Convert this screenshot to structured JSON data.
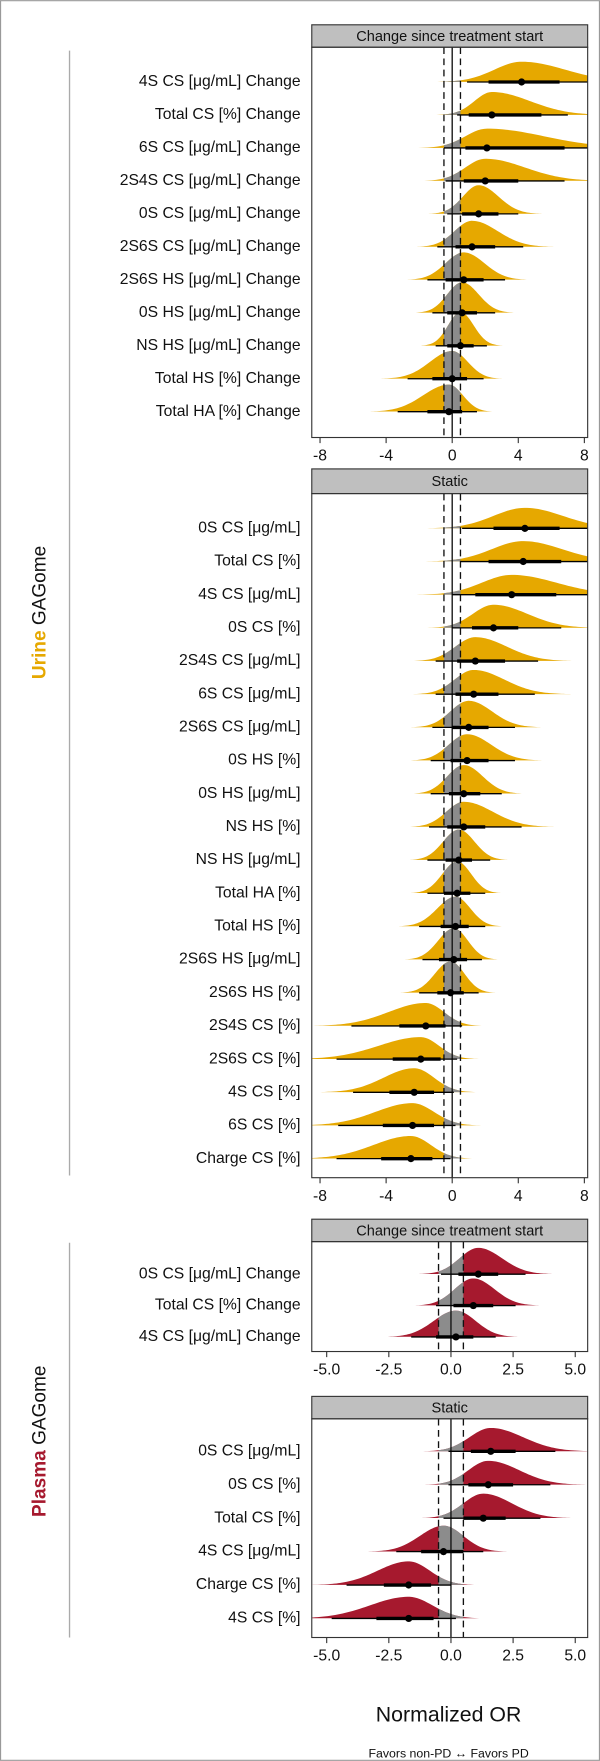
{
  "chart_data": [
    {
      "type": "forest",
      "title": "Change since treatment start",
      "color": "#e6a800",
      "rope_color": "#8c8c8c",
      "categories": [
        "4S CS [μg/mL] Change",
        "Total CS [%] Change",
        "6S CS [μg/mL] Change",
        "2S4S CS [μg/mL] Change",
        "0S CS [μg/mL] Change",
        "2S6S CS [μg/mL] Change",
        "2S6S HS [μg/mL] Change",
        "0S HS [μg/mL] Change",
        "NS HS [μg/mL] Change",
        "Total HS [%] Change",
        "Total HA [%] Change"
      ],
      "estimates": [
        4.2,
        2.4,
        2.1,
        2.0,
        1.6,
        1.2,
        0.7,
        0.6,
        0.5,
        0.0,
        -0.2
      ],
      "inner": [
        [
          2.2,
          6.5
        ],
        [
          1.0,
          5.4
        ],
        [
          0.8,
          6.8
        ],
        [
          0.7,
          4.0
        ],
        [
          0.6,
          2.8
        ],
        [
          0.2,
          2.6
        ],
        [
          -0.4,
          1.9
        ],
        [
          -0.3,
          1.5
        ],
        [
          -0.3,
          1.3
        ],
        [
          -1.2,
          0.9
        ],
        [
          -1.5,
          0.6
        ]
      ],
      "outer": [
        [
          0.9,
          9.5
        ],
        [
          0.3,
          7.0
        ],
        [
          -0.5,
          9.0
        ],
        [
          -0.4,
          6.8
        ],
        [
          -0.3,
          4.0
        ],
        [
          -0.9,
          4.3
        ],
        [
          -1.5,
          3.2
        ],
        [
          -1.2,
          2.6
        ],
        [
          -1.0,
          2.1
        ],
        [
          -2.7,
          1.9
        ],
        [
          -3.3,
          1.5
        ]
      ],
      "reference": 0,
      "rope": [
        -0.5,
        0.5
      ],
      "xlim": [
        -8.5,
        8.2
      ],
      "xticks": [
        -8,
        -4,
        0,
        4,
        8
      ]
    },
    {
      "type": "forest",
      "title": "Static",
      "color": "#e6a800",
      "rope_color": "#8c8c8c",
      "categories": [
        "0S CS [μg/mL]",
        "Total CS [%]",
        "4S CS [μg/mL]",
        "0S CS [%]",
        "2S4S CS [μg/mL]",
        "6S CS [μg/mL]",
        "2S6S CS [μg/mL]",
        "0S HS [%]",
        "0S HS [μg/mL]",
        "NS HS [%]",
        "NS HS [μg/mL]",
        "Total HA [%]",
        "Total HS [%]",
        "2S6S HS [μg/mL]",
        "2S6S HS [%]",
        "2S4S CS [%]",
        "2S6S CS [%]",
        "4S CS [%]",
        "6S CS [%]",
        "Charge CS [%]"
      ],
      "estimates": [
        4.4,
        4.3,
        3.6,
        2.5,
        1.4,
        1.3,
        1.0,
        0.9,
        0.7,
        0.7,
        0.4,
        0.3,
        0.2,
        0.1,
        -0.1,
        -1.6,
        -1.9,
        -2.3,
        -2.4,
        -2.5
      ],
      "inner": [
        [
          2.5,
          6.5
        ],
        [
          2.2,
          6.6
        ],
        [
          1.4,
          6.3
        ],
        [
          1.2,
          4.0
        ],
        [
          0.3,
          3.2
        ],
        [
          0.2,
          2.8
        ],
        [
          0.0,
          2.2
        ],
        [
          -0.1,
          2.2
        ],
        [
          -0.2,
          1.7
        ],
        [
          -0.3,
          2.0
        ],
        [
          -0.4,
          1.2
        ],
        [
          -0.5,
          1.1
        ],
        [
          -0.7,
          1.0
        ],
        [
          -0.8,
          0.9
        ],
        [
          -0.9,
          0.7
        ],
        [
          -3.2,
          -0.4
        ],
        [
          -3.6,
          -0.7
        ],
        [
          -3.8,
          -1.1
        ],
        [
          -4.2,
          -1.1
        ],
        [
          -4.3,
          -1.2
        ]
      ],
      "outer": [
        [
          0.6,
          9.0
        ],
        [
          0.5,
          9.0
        ],
        [
          0.0,
          9.0
        ],
        [
          0.0,
          6.6
        ],
        [
          -1.0,
          5.2
        ],
        [
          -1.0,
          5.0
        ],
        [
          -1.2,
          3.8
        ],
        [
          -1.3,
          3.8
        ],
        [
          -1.3,
          3.0
        ],
        [
          -1.4,
          4.2
        ],
        [
          -1.5,
          2.3
        ],
        [
          -1.5,
          2.0
        ],
        [
          -2.0,
          2.0
        ],
        [
          -1.8,
          1.8
        ],
        [
          -2.0,
          1.6
        ],
        [
          -6.1,
          0.6
        ],
        [
          -7.0,
          0.3
        ],
        [
          -6.0,
          0.1
        ],
        [
          -6.9,
          0.2
        ],
        [
          -7.0,
          -0.1
        ]
      ],
      "reference": 0,
      "rope": [
        -0.5,
        0.5
      ],
      "xlim": [
        -8.5,
        8.2
      ],
      "xticks": [
        -8,
        -4,
        0,
        4,
        8
      ]
    },
    {
      "type": "forest",
      "title": "Change since treatment start",
      "color": "#a6192e",
      "rope_color": "#8c8c8c",
      "categories": [
        "0S CS [μg/mL] Change",
        "Total CS [%] Change",
        "4S CS [μg/mL] Change"
      ],
      "estimates": [
        1.1,
        0.9,
        0.2
      ],
      "inner": [
        [
          0.3,
          1.9
        ],
        [
          0.1,
          1.7
        ],
        [
          -0.6,
          0.9
        ]
      ],
      "outer": [
        [
          -0.4,
          3.0
        ],
        [
          -0.6,
          2.6
        ],
        [
          -1.6,
          1.8
        ]
      ],
      "reference": 0,
      "rope": [
        -0.5,
        0.5
      ],
      "xlim": [
        -5.6,
        5.5
      ],
      "xticks": [
        {
          "value": -5,
          "label": "-5.0"
        },
        {
          "value": -2.5,
          "label": "-2.5"
        },
        {
          "value": 0,
          "label": "0.0"
        },
        {
          "value": 2.5,
          "label": "2.5"
        },
        {
          "value": 5,
          "label": "5.0"
        }
      ]
    },
    {
      "type": "forest",
      "title": "Static",
      "color": "#a6192e",
      "rope_color": "#8c8c8c",
      "categories": [
        "0S CS [μg/mL]",
        "0S CS [%]",
        "Total CS [%]",
        "4S CS [μg/mL]",
        "Charge CS [%]",
        "4S CS [%]"
      ],
      "estimates": [
        1.6,
        1.5,
        1.3,
        -0.3,
        -1.7,
        -1.7
      ],
      "inner": [
        [
          0.8,
          2.6
        ],
        [
          0.7,
          2.5
        ],
        [
          0.5,
          2.2
        ],
        [
          -1.2,
          0.5
        ],
        [
          -2.7,
          -0.8
        ],
        [
          -3.0,
          -0.7
        ]
      ],
      "outer": [
        [
          -0.1,
          4.2
        ],
        [
          -0.1,
          4.0
        ],
        [
          -0.3,
          3.6
        ],
        [
          -2.2,
          1.3
        ],
        [
          -4.2,
          0.0
        ],
        [
          -4.8,
          0.2
        ]
      ],
      "reference": 0,
      "rope": [
        -0.5,
        0.5
      ],
      "xlim": [
        -5.6,
        5.5
      ],
      "xticks": [
        {
          "value": -5,
          "label": "-5.0"
        },
        {
          "value": -2.5,
          "label": "-2.5"
        },
        {
          "value": 0,
          "label": "0.0"
        },
        {
          "value": 2.5,
          "label": "2.5"
        },
        {
          "value": 5,
          "label": "5.0"
        }
      ]
    }
  ],
  "groups": [
    {
      "name": "Urine",
      "rest": "GAGome",
      "color": "#e6a800"
    },
    {
      "name": "Plasma",
      "rest": "GAGome",
      "color": "#a6192e"
    }
  ],
  "x_label": "Normalized OR",
  "x_note": "Favors non-PD ↔ Favors PD"
}
